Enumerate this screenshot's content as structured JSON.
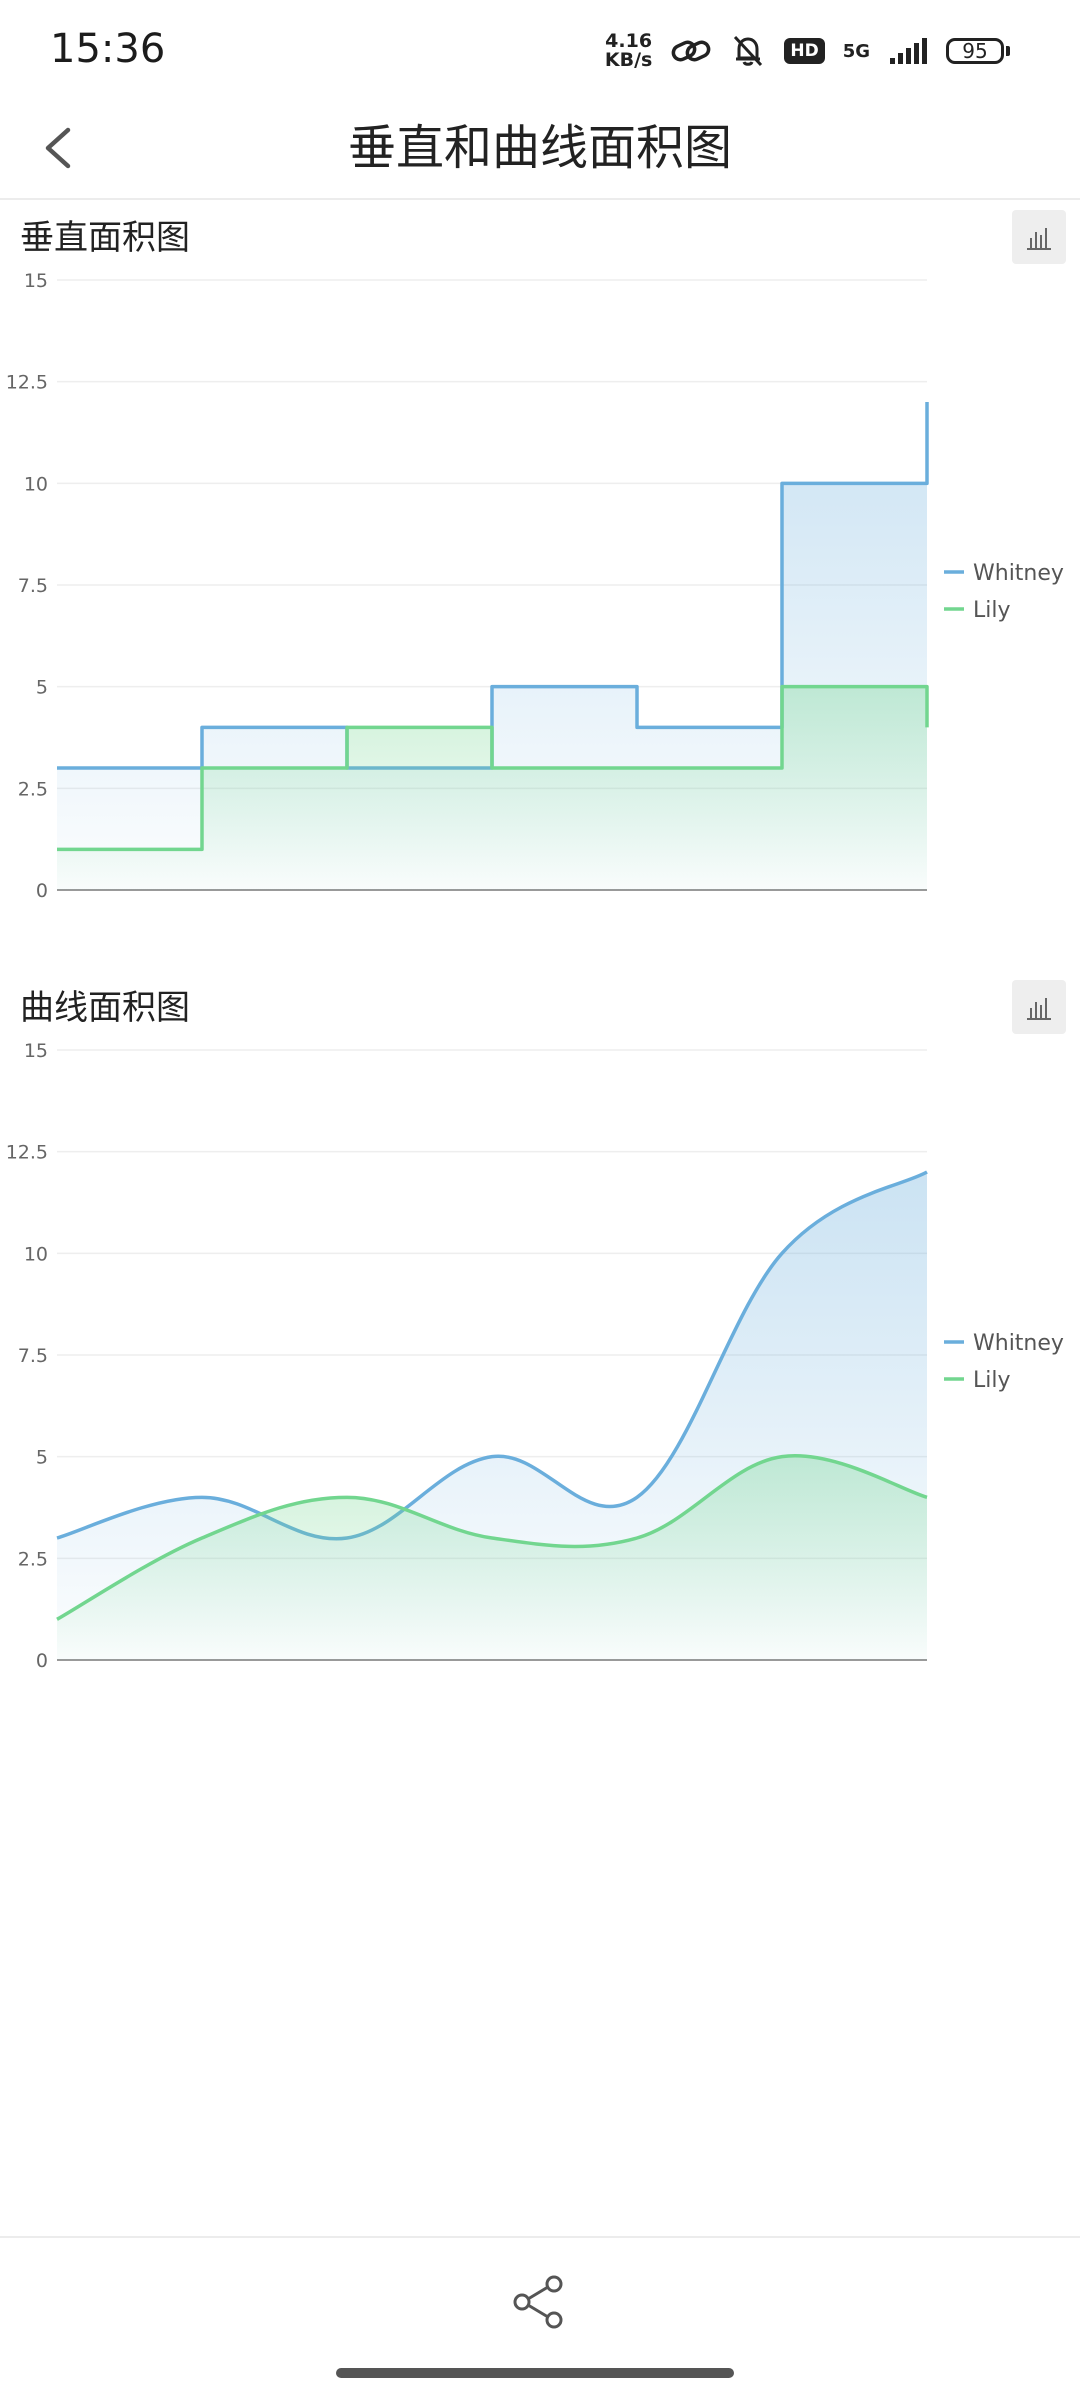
{
  "status_bar": {
    "time": "15:36",
    "net_speed_value": "4.16",
    "net_speed_unit": "KB/s",
    "hd_label": "HD",
    "network_label": "5G",
    "battery_level": "95",
    "icons": [
      "link-icon",
      "bell-muted-icon",
      "signal-icon"
    ]
  },
  "header": {
    "title": "垂直和曲线面积图",
    "back_icon": "chevron-left-icon"
  },
  "share_icon": "share-icon",
  "colors": {
    "whitney": "#6aaedc",
    "lily": "#72d68f",
    "grid": "#eeeeee",
    "axis": "#999999"
  },
  "chart_data": [
    {
      "title": "垂直面积图",
      "type": "area",
      "line_style": "step",
      "x": [
        0,
        1,
        2,
        3,
        4,
        5,
        6
      ],
      "ylim": [
        0,
        15
      ],
      "yticks": [
        "0",
        "2.5",
        "5",
        "7.5",
        "10",
        "12.5",
        "15"
      ],
      "legend_position": "right",
      "grid": true,
      "series": [
        {
          "name": "Whitney",
          "values": [
            3,
            4,
            3,
            5,
            4,
            10,
            12
          ]
        },
        {
          "name": "Lily",
          "values": [
            1,
            3,
            4,
            3,
            3,
            5,
            4
          ]
        }
      ]
    },
    {
      "title": "曲线面积图",
      "type": "area",
      "line_style": "smooth",
      "x": [
        0,
        1,
        2,
        3,
        4,
        5,
        6
      ],
      "ylim": [
        0,
        15
      ],
      "yticks": [
        "0",
        "2.5",
        "5",
        "7.5",
        "10",
        "12.5",
        "15"
      ],
      "legend_position": "right",
      "grid": true,
      "series": [
        {
          "name": "Whitney",
          "values": [
            3,
            4,
            3,
            5,
            4,
            10,
            12
          ]
        },
        {
          "name": "Lily",
          "values": [
            1,
            3,
            4,
            3,
            3,
            5,
            4
          ]
        }
      ]
    }
  ]
}
